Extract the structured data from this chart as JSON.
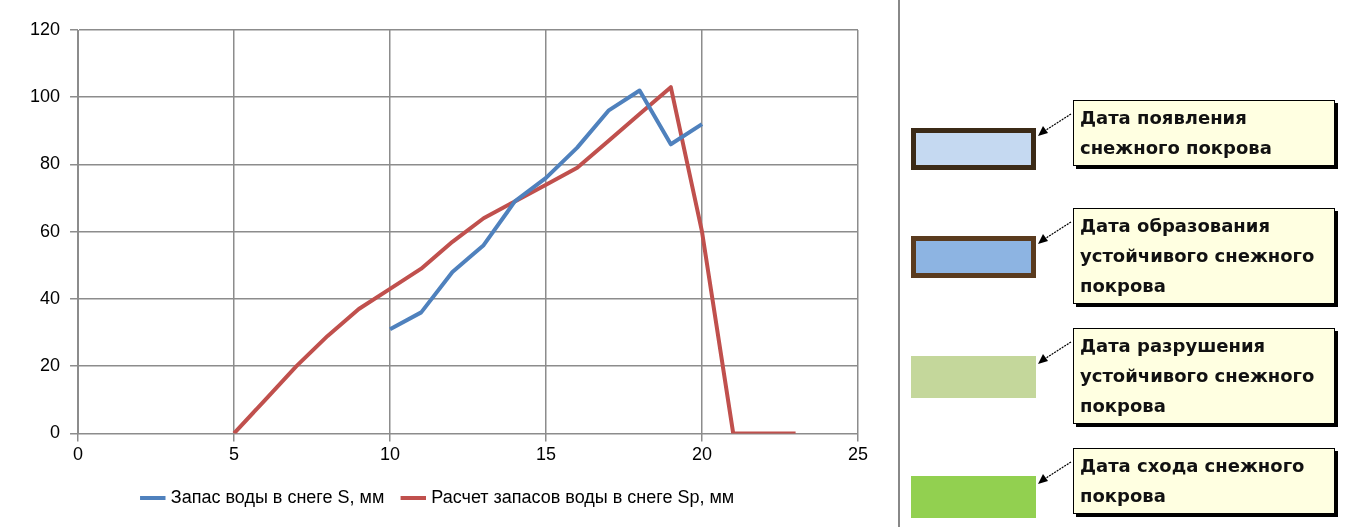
{
  "chart_data": {
    "type": "line",
    "x": [
      5,
      6,
      7,
      8,
      9,
      10,
      11,
      12,
      13,
      14,
      15,
      16,
      17,
      18,
      19,
      20,
      21,
      22,
      23
    ],
    "series": [
      {
        "name": "Запас воды в снеге S, мм",
        "color": "#4f81bd",
        "x": [
          10,
          11,
          12,
          13,
          14,
          15,
          16,
          17,
          18,
          19,
          20
        ],
        "values": [
          31,
          36,
          48,
          56,
          69,
          76,
          85,
          96,
          102,
          86,
          92
        ]
      },
      {
        "name": "Расчет запасов воды в снеге Sp, мм",
        "color": "#c0504d",
        "values": [
          0,
          10,
          20,
          29,
          37,
          43,
          49,
          57,
          64,
          69,
          74,
          79,
          87,
          95,
          103,
          60,
          0,
          0,
          0
        ]
      }
    ],
    "xlim": [
      0,
      25
    ],
    "xticks": [
      0,
      5,
      10,
      15,
      20,
      25
    ],
    "ylim": [
      0,
      120
    ],
    "yticks": [
      0,
      20,
      40,
      60,
      80,
      100,
      120
    ],
    "grid": true,
    "legend": "bottom",
    "marker": "none",
    "line_style": "solid",
    "annotations": [
      "Дата появления снежного покрова",
      "Дата образования устойчивого снежного покрова",
      "Дата разрушения устойчивого снежного покрова",
      "Дата схода снежного покрова"
    ]
  }
}
